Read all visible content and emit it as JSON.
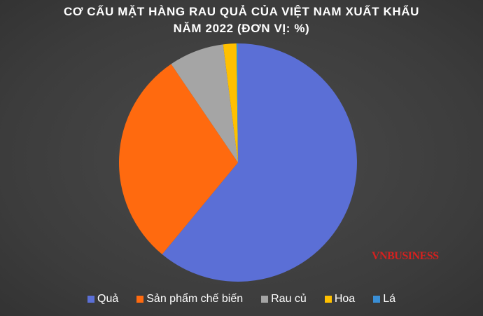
{
  "chart_data": {
    "type": "pie",
    "title_line1": "CƠ CẤU MẶT HÀNG RAU QUẢ CỦA VIỆT NAM XUẤT KHẨU",
    "title_line2": "NĂM 2022 (ĐƠN VỊ: %)",
    "categories": [
      "Quả",
      "Sản phẩm chế biến",
      "Rau củ",
      "Hoa",
      "Lá"
    ],
    "values": [
      61,
      29.5,
      7.5,
      1.8,
      0.2
    ],
    "colors": [
      "#5b6fd6",
      "#ff6a0f",
      "#a5a5a5",
      "#ffc000",
      "#3a8fd6"
    ],
    "legend_position": "bottom"
  },
  "watermark": "VNBUSINESS"
}
